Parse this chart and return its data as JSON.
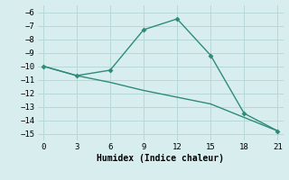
{
  "line1_x": [
    0,
    3,
    6,
    9,
    12,
    15,
    18,
    21
  ],
  "line1_y": [
    -10,
    -10.7,
    -10.3,
    -7.3,
    -6.5,
    -9.2,
    -13.5,
    -14.8
  ],
  "line2_x": [
    0,
    3,
    6,
    9,
    12,
    15,
    18,
    21
  ],
  "line2_y": [
    -10.0,
    -10.7,
    -11.2,
    -11.8,
    -12.3,
    -12.8,
    -13.8,
    -14.8
  ],
  "xlabel": "Humidex (Indice chaleur)",
  "xlim": [
    -0.5,
    21.5
  ],
  "ylim": [
    -15.5,
    -5.5
  ],
  "xticks": [
    0,
    3,
    6,
    9,
    12,
    15,
    18,
    21
  ],
  "yticks": [
    -6,
    -7,
    -8,
    -9,
    -10,
    -11,
    -12,
    -13,
    -14,
    -15
  ],
  "line_color": "#2e8b7a",
  "bg_color": "#d8eeee",
  "grid_color": "#b8d8d8"
}
